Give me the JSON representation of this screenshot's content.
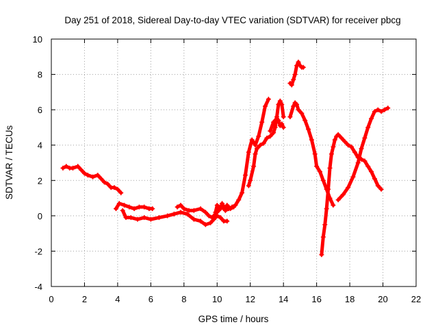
{
  "chart_data": {
    "type": "scatter",
    "title": "Day 251 of 2018, Sidereal Day-to-day VTEC variation (SDTVAR) for receiver pbcg",
    "xlabel": "GPS time / hours",
    "ylabel": "SDTVAR / TECUs",
    "xlim": [
      0,
      22
    ],
    "ylim": [
      -4,
      10
    ],
    "xticks": [
      0,
      2,
      4,
      6,
      8,
      10,
      12,
      14,
      16,
      18,
      20,
      22
    ],
    "yticks": [
      -4,
      -2,
      0,
      2,
      4,
      6,
      8,
      10
    ],
    "grid": true,
    "marker": "+",
    "color": "#ff0000",
    "series": [
      {
        "name": "segment-1",
        "x": [
          0.7,
          0.9,
          1.1,
          1.3,
          1.6,
          1.8,
          2.0,
          2.2,
          2.5,
          2.8,
          3.0,
          3.2,
          3.4,
          3.6,
          3.8,
          4.0,
          4.2
        ],
        "y": [
          2.7,
          2.8,
          2.7,
          2.7,
          2.8,
          2.6,
          2.4,
          2.3,
          2.2,
          2.3,
          2.1,
          1.9,
          1.8,
          1.6,
          1.6,
          1.5,
          1.3
        ]
      },
      {
        "name": "segment-2",
        "x": [
          3.9,
          4.1,
          4.4,
          4.7,
          5.0,
          5.3,
          5.6,
          5.9,
          6.1
        ],
        "y": [
          0.4,
          0.7,
          0.6,
          0.5,
          0.4,
          0.5,
          0.5,
          0.4,
          0.4
        ]
      },
      {
        "name": "segment-3",
        "x": [
          4.3,
          4.5,
          4.8,
          5.2,
          5.6,
          6.0,
          6.5,
          7.0,
          7.4,
          7.8,
          8.2,
          8.6,
          9.0,
          9.3,
          9.6,
          9.8,
          10.0,
          10.2,
          10.4,
          10.6
        ],
        "y": [
          0.3,
          -0.1,
          -0.1,
          -0.2,
          -0.1,
          -0.2,
          -0.1,
          0.0,
          0.1,
          0.2,
          0.1,
          -0.2,
          -0.3,
          -0.5,
          -0.4,
          -0.2,
          0.0,
          -0.1,
          -0.3,
          -0.3
        ]
      },
      {
        "name": "segment-4",
        "x": [
          7.6,
          7.8,
          8.0,
          8.3,
          8.6,
          9.0,
          9.3,
          9.5,
          9.7,
          9.9,
          10.1,
          10.3,
          10.5,
          10.7,
          10.9,
          11.1,
          11.3,
          11.5,
          11.7,
          11.9,
          12.1,
          12.3,
          12.5,
          12.7,
          12.9,
          13.1
        ],
        "y": [
          0.5,
          0.6,
          0.4,
          0.3,
          0.3,
          0.4,
          0.2,
          0.0,
          -0.1,
          0.1,
          0.3,
          0.5,
          0.3,
          0.4,
          0.5,
          0.6,
          0.9,
          1.3,
          2.3,
          3.6,
          4.3,
          4.0,
          4.5,
          5.3,
          6.2,
          6.6
        ]
      },
      {
        "name": "segment-5",
        "x": [
          9.9,
          10.0,
          10.2,
          10.3,
          10.5,
          10.6,
          10.8,
          11.0
        ],
        "y": [
          0.2,
          0.6,
          0.4,
          0.7,
          0.3,
          0.6,
          0.4,
          0.5
        ]
      },
      {
        "name": "segment-6",
        "x": [
          11.9,
          12.0,
          12.2,
          12.3,
          12.4,
          12.6,
          12.8,
          13.0,
          13.2,
          13.4,
          13.5,
          13.6,
          13.7,
          13.8,
          13.9,
          14.0
        ],
        "y": [
          1.7,
          2.0,
          2.8,
          3.5,
          3.8,
          4.0,
          4.1,
          4.4,
          4.5,
          4.7,
          5.0,
          5.6,
          6.3,
          6.5,
          6.3,
          5.6
        ]
      },
      {
        "name": "segment-7",
        "x": [
          13.2,
          13.4,
          13.6,
          13.7,
          13.8,
          13.9,
          14.0
        ],
        "y": [
          4.8,
          5.3,
          5.5,
          5.4,
          5.1,
          5.2,
          5.0
        ]
      },
      {
        "name": "segment-8",
        "x": [
          14.4,
          14.5,
          14.6,
          14.7,
          14.8,
          14.9,
          15.0,
          15.1,
          15.2
        ],
        "y": [
          7.5,
          7.4,
          7.7,
          8.0,
          8.5,
          8.7,
          8.5,
          8.4,
          8.4
        ]
      },
      {
        "name": "segment-9",
        "x": [
          14.4,
          14.6,
          14.7,
          14.8,
          14.9,
          15.1,
          15.3,
          15.5,
          15.7,
          15.9,
          16.0,
          16.2,
          16.4,
          16.6,
          16.8,
          17.0
        ],
        "y": [
          5.6,
          6.2,
          6.4,
          6.3,
          6.0,
          5.8,
          5.4,
          4.9,
          4.3,
          3.5,
          2.8,
          2.5,
          2.0,
          1.5,
          1.0,
          0.6
        ]
      },
      {
        "name": "segment-10",
        "x": [
          16.3,
          16.4,
          16.5,
          16.6,
          16.7,
          16.8,
          16.9,
          17.0,
          17.1,
          17.2,
          17.3,
          17.5,
          17.7,
          17.9,
          18.1,
          18.3,
          18.5,
          18.7,
          18.9,
          19.1,
          19.3,
          19.5,
          19.7,
          19.9
        ],
        "y": [
          -2.2,
          -1.2,
          -0.5,
          0.4,
          1.5,
          2.7,
          3.5,
          3.9,
          4.3,
          4.5,
          4.6,
          4.4,
          4.2,
          4.0,
          3.9,
          3.6,
          3.3,
          3.2,
          3.1,
          2.8,
          2.5,
          2.1,
          1.7,
          1.5
        ]
      },
      {
        "name": "segment-11",
        "x": [
          17.3,
          17.6,
          17.9,
          18.2,
          18.5,
          18.7,
          18.9,
          19.1,
          19.3,
          19.5,
          19.7,
          19.9,
          20.1,
          20.3
        ],
        "y": [
          0.9,
          1.2,
          1.6,
          2.2,
          3.0,
          3.8,
          4.4,
          5.0,
          5.5,
          5.9,
          6.0,
          5.9,
          6.0,
          6.1
        ]
      }
    ]
  }
}
